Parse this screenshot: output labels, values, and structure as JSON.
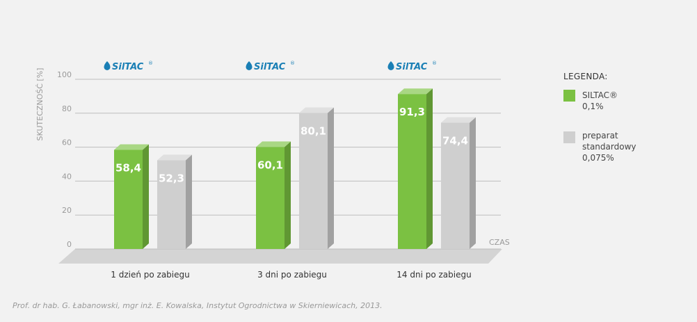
{
  "chart_data": {
    "type": "bar",
    "ylabel": "SKUTECZNOŚĆ [%]",
    "xlabel": "CZAS",
    "ylim": [
      0,
      100
    ],
    "yticks": [
      "0",
      "20",
      "40",
      "60",
      "80",
      "100"
    ],
    "categories": [
      "1 dzień po zabiegu",
      "3 dni po zabiegu",
      "14 dni po zabiegu"
    ],
    "value_labels": {
      "siltac": [
        "58,4",
        "60,1",
        "91,3"
      ],
      "standard": [
        "52,3",
        "80,1",
        "74,4"
      ]
    },
    "series": [
      {
        "name": "SILTAC® 0,1%",
        "color": "#7bc142",
        "values": [
          58.4,
          60.1,
          91.3
        ]
      },
      {
        "name": "preparat standardowy 0,075%",
        "color": "#cfcfcf",
        "values": [
          52.3,
          80.1,
          74.4
        ]
      }
    ],
    "grid": true,
    "legend_position": "right"
  },
  "logo": {
    "text": "SilTAC",
    "mark": "®",
    "color": "#1a7fb5",
    "icon": "siltac-drop-icon"
  },
  "legend": {
    "title": "LEGENDA:",
    "items": [
      {
        "label_line1": "SILTAC®",
        "label_line2": "0,1%",
        "color": "#7bc142"
      },
      {
        "label_line1": "preparat",
        "label_line2": "standardowy",
        "label_line3": "0,075%",
        "color": "#cfcfcf"
      }
    ]
  },
  "credit": "Prof. dr hab. G. Łabanowski, mgr inż. E. Kowalska, Instytut Ogrodnictwa w Skierniewicach, 2013."
}
